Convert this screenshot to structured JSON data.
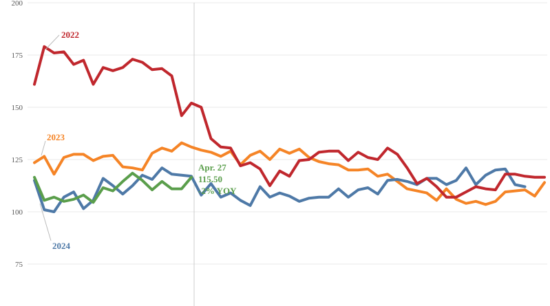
{
  "chart_data": {
    "type": "line",
    "ylim": [
      70,
      200
    ],
    "y_ticks": [
      75,
      100,
      125,
      150,
      175,
      200
    ],
    "grid": "horizontal",
    "annotation": {
      "lines": [
        "Apr. 27",
        "115.50",
        "-2% YOY"
      ]
    },
    "series": [
      {
        "name": "2022",
        "color": "#c0272d",
        "values": [
          161,
          179,
          176,
          176.5,
          170.5,
          172.5,
          161,
          169,
          167.5,
          169,
          173,
          171.5,
          168,
          168.5,
          165,
          146,
          152,
          150,
          135,
          131,
          130.5,
          122,
          123.5,
          120.5,
          112.5,
          119.5,
          117,
          124.5,
          125,
          128.5,
          129,
          129,
          124.5,
          128.5,
          126,
          125,
          130.5,
          127.5,
          121,
          113.5,
          116,
          112,
          107,
          107,
          109.5,
          112,
          111,
          110.5,
          118,
          118,
          117,
          116.5,
          116.5
        ]
      },
      {
        "name": "2023",
        "color": "#f58426",
        "values": [
          123.5,
          126.5,
          118,
          126,
          127.5,
          127.5,
          124.5,
          126.5,
          127,
          121.5,
          121,
          120,
          128,
          130.5,
          129,
          133,
          131,
          129.5,
          128.5,
          126.5,
          129,
          122.5,
          127,
          129,
          125,
          130,
          128,
          130,
          126,
          124,
          123,
          122.5,
          120,
          120,
          120.5,
          117,
          118,
          114.5,
          111,
          110,
          109,
          105.5,
          111,
          106,
          104,
          105,
          103.5,
          105,
          109.5,
          110,
          110.5,
          107.5,
          114
        ]
      },
      {
        "name": "2024",
        "color": "#4e79a7",
        "values": [
          115,
          101,
          100,
          107,
          109.5,
          101.5,
          105.5,
          116,
          112.5,
          108.5,
          112.5,
          117.5,
          115.5,
          121,
          118,
          117.5,
          117,
          108,
          113.5,
          107,
          109,
          105.5,
          103,
          112,
          107,
          109,
          107.5,
          105,
          106.5,
          107,
          107,
          111,
          107,
          110.5,
          111.5,
          108.5,
          115,
          115.5,
          114.5,
          113,
          116,
          116,
          113,
          115,
          121,
          113,
          117.5,
          120,
          120.5,
          113,
          112
        ]
      },
      {
        "name": "",
        "color": "#5a9e4b",
        "values": [
          116.5,
          105.5,
          107,
          105,
          106,
          108,
          104.5,
          111.5,
          110,
          114.5,
          118.5,
          115,
          110.5,
          114.5,
          111,
          111,
          116.5
        ]
      }
    ]
  },
  "labels": {
    "s2022": "2022",
    "s2023": "2023",
    "s2024": "2024"
  }
}
